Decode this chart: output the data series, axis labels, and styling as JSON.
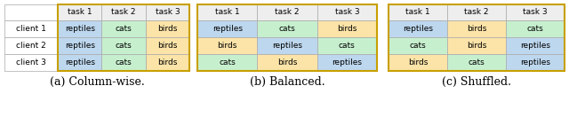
{
  "color_reptiles": "#bdd7ee",
  "color_cats": "#c6efce",
  "color_birds": "#fce4a8",
  "color_header_bg": "#eeeeee",
  "color_outer_border": "#c8a000",
  "color_inner_border": "#aaaaaa",
  "label_colors": {
    "reptiles": "#bdd7ee",
    "cats": "#c6efce",
    "birds": "#fce4a8"
  },
  "tables": [
    {
      "title": "(a) Column-wise.",
      "col_labels": [
        "task 1",
        "task 2",
        "task 3"
      ],
      "row_labels": [
        "client 1",
        "client 2",
        "client 3"
      ],
      "has_row_labels": true,
      "cells": [
        [
          "reptiles",
          "cats",
          "birds"
        ],
        [
          "reptiles",
          "cats",
          "birds"
        ],
        [
          "reptiles",
          "cats",
          "birds"
        ]
      ]
    },
    {
      "title": "(b) Balanced.",
      "col_labels": [
        "task 1",
        "task 2",
        "task 3"
      ],
      "row_labels": [
        "",
        "",
        ""
      ],
      "has_row_labels": false,
      "cells": [
        [
          "reptiles",
          "cats",
          "birds"
        ],
        [
          "birds",
          "reptiles",
          "cats"
        ],
        [
          "cats",
          "birds",
          "reptiles"
        ]
      ]
    },
    {
      "title": "(c) Shuffled.",
      "col_labels": [
        "task 1",
        "task 2",
        "task 3"
      ],
      "row_labels": [
        "",
        "",
        ""
      ],
      "has_row_labels": false,
      "cells": [
        [
          "reptiles",
          "birds",
          "cats"
        ],
        [
          "cats",
          "birds",
          "reptiles"
        ],
        [
          "birds",
          "cats",
          "reptiles"
        ]
      ]
    }
  ],
  "figsize": [
    6.4,
    1.41
  ],
  "dpi": 100,
  "cell_fontsize": 6.5,
  "header_fontsize": 6.5,
  "caption_fontsize": 9.0
}
